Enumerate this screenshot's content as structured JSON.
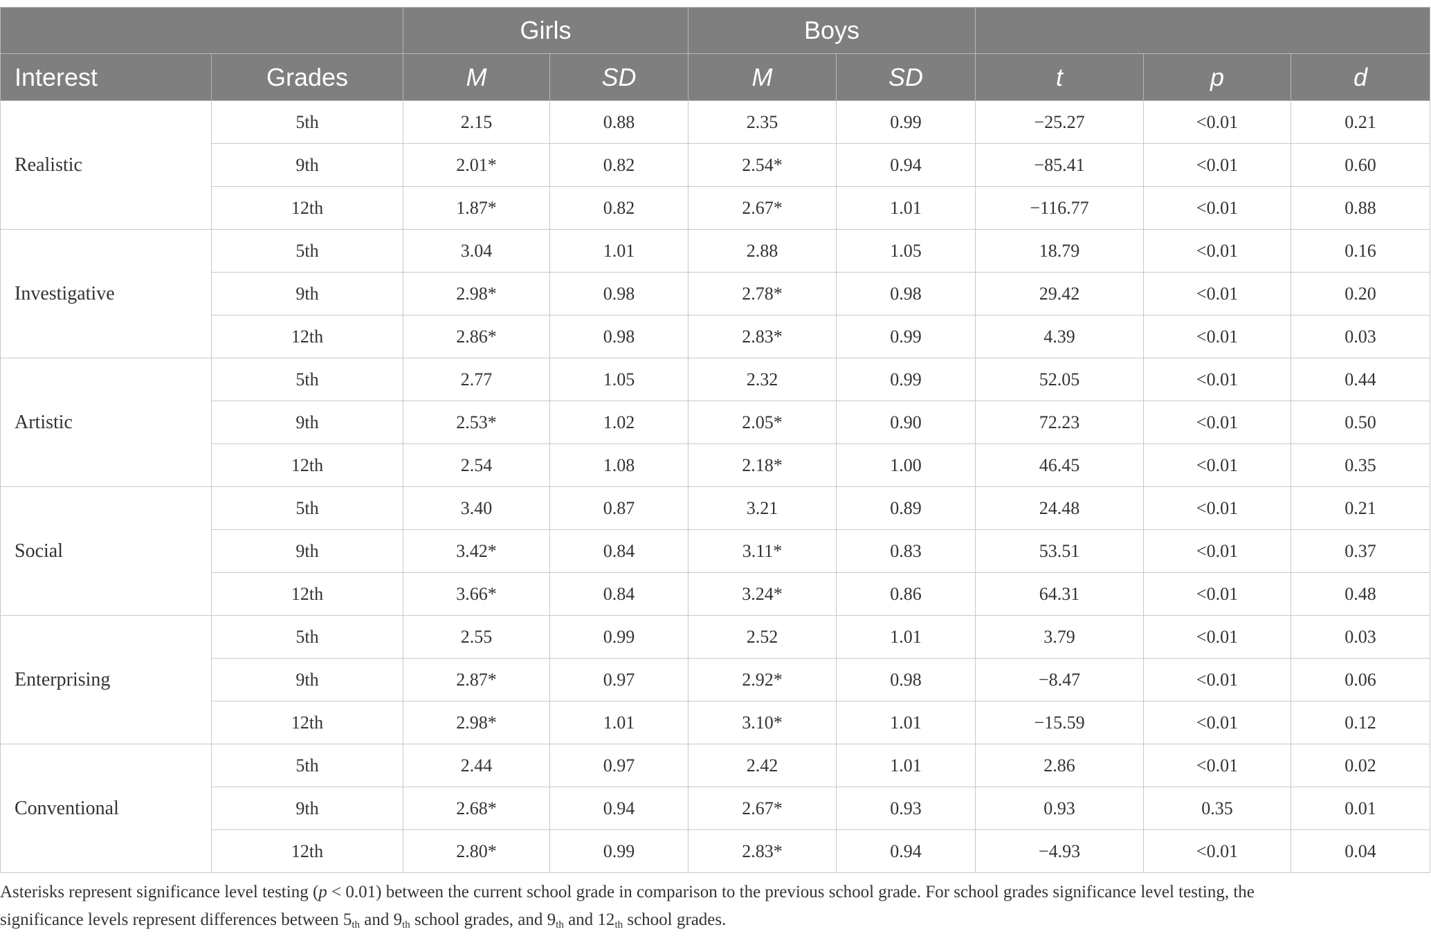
{
  "chart_data": {
    "type": "table",
    "group_headers": {
      "girls": "Girls",
      "boys": "Boys"
    },
    "column_headers": {
      "interest": "Interest",
      "grades": "Grades",
      "girls_m": "M",
      "girls_sd": "SD",
      "boys_m": "M",
      "boys_sd": "SD",
      "t": "t",
      "p": "p",
      "d": "d"
    },
    "groups": [
      {
        "interest": "Realistic",
        "rows": [
          {
            "grade": "5th",
            "girls_m": "2.15",
            "girls_sd": "0.88",
            "boys_m": "2.35",
            "boys_sd": "0.99",
            "t": "−25.27",
            "p": "<0.01",
            "d": "0.21"
          },
          {
            "grade": "9th",
            "girls_m": "2.01*",
            "girls_sd": "0.82",
            "boys_m": "2.54*",
            "boys_sd": "0.94",
            "t": "−85.41",
            "p": "<0.01",
            "d": "0.60"
          },
          {
            "grade": "12th",
            "girls_m": "1.87*",
            "girls_sd": "0.82",
            "boys_m": "2.67*",
            "boys_sd": "1.01",
            "t": "−116.77",
            "p": "<0.01",
            "d": "0.88"
          }
        ]
      },
      {
        "interest": "Investigative",
        "rows": [
          {
            "grade": "5th",
            "girls_m": "3.04",
            "girls_sd": "1.01",
            "boys_m": "2.88",
            "boys_sd": "1.05",
            "t": "18.79",
            "p": "<0.01",
            "d": "0.16"
          },
          {
            "grade": "9th",
            "girls_m": "2.98*",
            "girls_sd": "0.98",
            "boys_m": "2.78*",
            "boys_sd": "0.98",
            "t": "29.42",
            "p": "<0.01",
            "d": "0.20"
          },
          {
            "grade": "12th",
            "girls_m": "2.86*",
            "girls_sd": "0.98",
            "boys_m": "2.83*",
            "boys_sd": "0.99",
            "t": "4.39",
            "p": "<0.01",
            "d": "0.03"
          }
        ]
      },
      {
        "interest": "Artistic",
        "rows": [
          {
            "grade": "5th",
            "girls_m": "2.77",
            "girls_sd": "1.05",
            "boys_m": "2.32",
            "boys_sd": "0.99",
            "t": "52.05",
            "p": "<0.01",
            "d": "0.44"
          },
          {
            "grade": "9th",
            "girls_m": "2.53*",
            "girls_sd": "1.02",
            "boys_m": "2.05*",
            "boys_sd": "0.90",
            "t": "72.23",
            "p": "<0.01",
            "d": "0.50"
          },
          {
            "grade": "12th",
            "girls_m": "2.54",
            "girls_sd": "1.08",
            "boys_m": "2.18*",
            "boys_sd": "1.00",
            "t": "46.45",
            "p": "<0.01",
            "d": "0.35"
          }
        ]
      },
      {
        "interest": "Social",
        "rows": [
          {
            "grade": "5th",
            "girls_m": "3.40",
            "girls_sd": "0.87",
            "boys_m": "3.21",
            "boys_sd": "0.89",
            "t": "24.48",
            "p": "<0.01",
            "d": "0.21"
          },
          {
            "grade": "9th",
            "girls_m": "3.42*",
            "girls_sd": "0.84",
            "boys_m": "3.11*",
            "boys_sd": "0.83",
            "t": "53.51",
            "p": "<0.01",
            "d": "0.37"
          },
          {
            "grade": "12th",
            "girls_m": "3.66*",
            "girls_sd": "0.84",
            "boys_m": "3.24*",
            "boys_sd": "0.86",
            "t": "64.31",
            "p": "<0.01",
            "d": "0.48"
          }
        ]
      },
      {
        "interest": "Enterprising",
        "rows": [
          {
            "grade": "5th",
            "girls_m": "2.55",
            "girls_sd": "0.99",
            "boys_m": "2.52",
            "boys_sd": "1.01",
            "t": "3.79",
            "p": "<0.01",
            "d": "0.03"
          },
          {
            "grade": "9th",
            "girls_m": "2.87*",
            "girls_sd": "0.97",
            "boys_m": "2.92*",
            "boys_sd": "0.98",
            "t": "−8.47",
            "p": "<0.01",
            "d": "0.06"
          },
          {
            "grade": "12th",
            "girls_m": "2.98*",
            "girls_sd": "1.01",
            "boys_m": "3.10*",
            "boys_sd": "1.01",
            "t": "−15.59",
            "p": "<0.01",
            "d": "0.12"
          }
        ]
      },
      {
        "interest": "Conventional",
        "rows": [
          {
            "grade": "5th",
            "girls_m": "2.44",
            "girls_sd": "0.97",
            "boys_m": "2.42",
            "boys_sd": "1.01",
            "t": "2.86",
            "p": "<0.01",
            "d": "0.02"
          },
          {
            "grade": "9th",
            "girls_m": "2.68*",
            "girls_sd": "0.94",
            "boys_m": "2.67*",
            "boys_sd": "0.93",
            "t": "0.93",
            "p": "0.35",
            "d": "0.01"
          },
          {
            "grade": "12th",
            "girls_m": "2.80*",
            "girls_sd": "0.99",
            "boys_m": "2.83*",
            "boys_sd": "0.94",
            "t": "−4.93",
            "p": "<0.01",
            "d": "0.04"
          }
        ]
      }
    ]
  },
  "note": {
    "line1_a": "Asterisks represent significance level testing (",
    "line1_p": "p",
    "line1_b": " < 0.01) between the current school grade in comparison to the previous school grade. For school grades significance level testing, the",
    "line2_a": "significance levels represent differences between 5",
    "line2_sub1": "th",
    "line2_b": " and 9",
    "line2_sub2": "th",
    "line2_c": " school grades, and 9",
    "line2_sub3": "th",
    "line2_d": " and 12",
    "line2_sub4": "th",
    "line2_e": " school grades."
  },
  "colors": {
    "header_bg": "#7f7f7f",
    "header_text": "#ffffff",
    "body_text": "#333333",
    "grid": "#c8c8c8"
  }
}
